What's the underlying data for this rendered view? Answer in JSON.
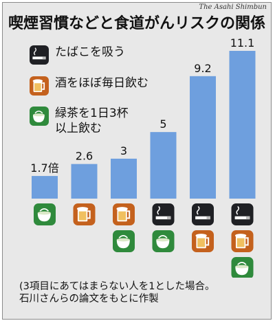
{
  "source": "The Asahi Shimbun",
  "title": "喫煙習慣などと食道がんリスクの関係",
  "legend": [
    {
      "key": "smoke",
      "icon": "cigarette-icon",
      "label": "たばこを吸う",
      "color": "#1f2024"
    },
    {
      "key": "drink",
      "icon": "beer-mug-icon",
      "label": "酒をほぼ毎日飲む",
      "color": "#c4611d"
    },
    {
      "key": "tea",
      "icon": "teacup-icon",
      "label": "緑茶を1日3杯\n以上飲む",
      "color": "#2f8a3c"
    }
  ],
  "chart_data": {
    "type": "bar",
    "title": "喫煙習慣などと食道がんリスクの関係",
    "categories": [
      "緑茶を1日3杯以上飲む",
      "酒をほぼ毎日飲む",
      "酒をほぼ毎日飲む＋緑茶を1日3杯以上飲む",
      "たばこを吸う＋緑茶を1日3杯以上飲む",
      "たばこを吸う＋酒をほぼ毎日飲む",
      "たばこを吸う＋酒をほぼ毎日飲む＋緑茶を1日3杯以上飲む"
    ],
    "values": [
      1.7,
      2.6,
      3,
      5,
      9.2,
      11.1
    ],
    "value_labels": [
      "1.7倍",
      "2.6",
      "3",
      "5",
      "9.2",
      "11.1"
    ],
    "icons": [
      [
        "tea"
      ],
      [
        "drink"
      ],
      [
        "drink",
        "tea"
      ],
      [
        "smoke",
        "tea"
      ],
      [
        "smoke",
        "drink"
      ],
      [
        "smoke",
        "drink",
        "tea"
      ]
    ],
    "bar_color": "#6e9fde",
    "ylim": [
      0,
      11.1
    ]
  },
  "footnote": [
    "(3項目にあてはまらない人を1とした場合。",
    "石川さんらの論文をもとに作製"
  ]
}
